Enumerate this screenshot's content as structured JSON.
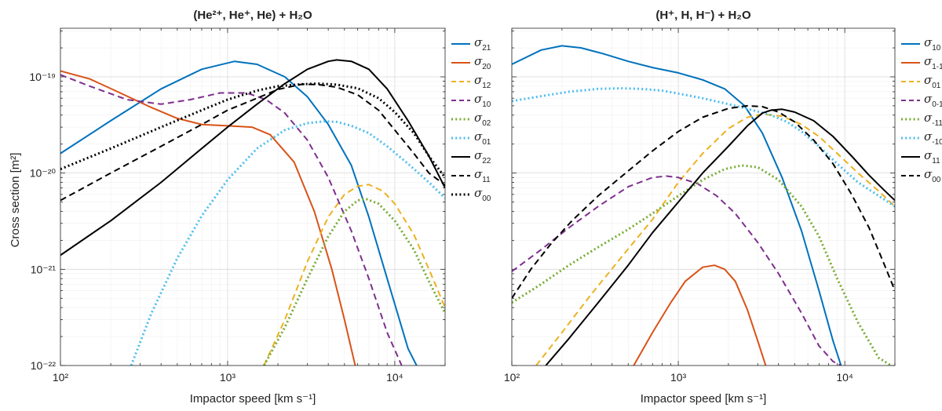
{
  "figure": {
    "left_title": "(He²⁺, He⁺, He) + H₂O",
    "right_title": "(H⁺, H, H⁻) + H₂O",
    "ylabel": "Cross section [m²]",
    "xlabel": "Impactor speed [km s⁻¹]"
  },
  "chart_data": [
    {
      "type": "line",
      "title": "(He²⁺, He⁺, He) + H₂O",
      "xlabel": "Impactor speed [km s⁻¹]",
      "ylabel": "Cross section [m²]",
      "xscale": "log",
      "yscale": "log",
      "xlim": [
        100,
        20000
      ],
      "ylim": [
        1e-22,
        3.2e-19
      ],
      "xticks": [
        100,
        1000,
        10000
      ],
      "xtick_labels": [
        "10²",
        "10³",
        "10⁴"
      ],
      "yticks": [
        1e-22,
        1e-21,
        1e-20,
        1e-19
      ],
      "ytick_labels": [
        "10⁻²²",
        "10⁻²¹",
        "10⁻²⁰",
        "10⁻¹⁹"
      ],
      "grid": true,
      "legend_position": "outside-right",
      "series": [
        {
          "name": "σ21",
          "sub": "21",
          "color": "#0072BD",
          "style": "solid",
          "x": [
            100,
            200,
            400,
            700,
            1100,
            1500,
            2200,
            3000,
            4000,
            5500,
            7000,
            9000,
            12000,
            13500
          ],
          "y": [
            1.6e-20,
            3.5e-20,
            7.5e-20,
            1.2e-19,
            1.45e-19,
            1.35e-19,
            1e-19,
            6.2e-20,
            3.2e-20,
            1.2e-20,
            3.5e-21,
            8e-22,
            1.5e-22,
            1e-22
          ]
        },
        {
          "name": "σ20",
          "sub": "20",
          "color": "#D95319",
          "style": "solid",
          "x": [
            100,
            150,
            220,
            350,
            500,
            700,
            1000,
            1400,
            1800,
            2500,
            3300,
            4200,
            5000,
            5800
          ],
          "y": [
            1.15e-19,
            9.5e-20,
            7e-20,
            4.8e-20,
            3.7e-20,
            3.2e-20,
            3.1e-20,
            3e-20,
            2.5e-20,
            1.3e-20,
            4e-21,
            1e-21,
            3e-22,
            1e-22
          ]
        },
        {
          "name": "σ12",
          "sub": "12",
          "color": "#EDB120",
          "style": "dashed",
          "x": [
            1650,
            2200,
            3000,
            4000,
            5000,
            6000,
            7000,
            8500,
            10000,
            13000,
            16000,
            20000
          ],
          "y": [
            1e-22,
            3e-22,
            1.2e-21,
            3.5e-21,
            6e-21,
            7.3e-21,
            7.6e-21,
            6.5e-21,
            4.8e-21,
            2.3e-21,
            1e-21,
            4e-22
          ]
        },
        {
          "name": "σ10",
          "sub": "10",
          "color": "#7E2F8E",
          "style": "dashed",
          "x": [
            100,
            150,
            250,
            400,
            600,
            900,
            1300,
            1700,
            2200,
            3000,
            4000,
            5500,
            7000,
            9000,
            11000
          ],
          "y": [
            1.05e-19,
            8e-20,
            5.8e-20,
            5.2e-20,
            5.8e-20,
            6.8e-20,
            6.8e-20,
            5.8e-20,
            4.2e-20,
            2.2e-20,
            9e-21,
            2.5e-21,
            8e-22,
            2.2e-22,
            1e-22
          ]
        },
        {
          "name": "σ02",
          "sub": "02",
          "color": "#77AC30",
          "style": "dotted",
          "x": [
            1650,
            2200,
            3000,
            4000,
            5000,
            6000,
            6700,
            8000,
            10000,
            13000,
            16000,
            20000
          ],
          "y": [
            1e-22,
            2.5e-22,
            8e-22,
            2.2e-21,
            4e-21,
            5.2e-21,
            5.4e-21,
            4.8e-21,
            3.2e-21,
            1.6e-21,
            7.5e-22,
            3.5e-22
          ]
        },
        {
          "name": "σ01",
          "sub": "01",
          "color": "#4DBEEE",
          "style": "dotted",
          "x": [
            265,
            350,
            500,
            700,
            1000,
            1500,
            2200,
            3000,
            3800,
            4500,
            5500,
            7000,
            9000,
            12000,
            16000,
            20000
          ],
          "y": [
            1e-22,
            3.5e-22,
            1.3e-21,
            3.6e-21,
            8.5e-21,
            1.8e-20,
            2.8e-20,
            3.3e-20,
            3.45e-20,
            3.4e-20,
            3.1e-20,
            2.6e-20,
            1.9e-20,
            1.25e-20,
            8e-21,
            5.5e-21
          ]
        },
        {
          "name": "σ22",
          "sub": "22",
          "color": "#000000",
          "style": "solid",
          "x": [
            100,
            200,
            400,
            700,
            1000,
            1500,
            2200,
            3000,
            4000,
            4500,
            5500,
            7000,
            9000,
            12000,
            16000,
            20000
          ],
          "y": [
            1.4e-21,
            3.2e-21,
            8e-21,
            1.8e-20,
            3e-20,
            5.2e-20,
            8.5e-20,
            1.2e-19,
            1.45e-19,
            1.5e-19,
            1.45e-19,
            1.2e-19,
            7.5e-20,
            3.5e-20,
            1.5e-20,
            7e-21
          ]
        },
        {
          "name": "σ11",
          "sub": "11",
          "color": "#000000",
          "style": "dashed",
          "x": [
            100,
            200,
            400,
            700,
            1000,
            1500,
            2000,
            2800,
            3500,
            4500,
            6000,
            8000,
            10000,
            13000,
            16000,
            20000
          ],
          "y": [
            5.2e-21,
            1e-20,
            1.9e-20,
            3.2e-20,
            4.5e-20,
            6e-20,
            7.4e-20,
            8.4e-20,
            8.3e-20,
            7.8e-20,
            6.5e-20,
            4.5e-20,
            2.8e-20,
            1.6e-20,
            1e-20,
            7.5e-21
          ]
        },
        {
          "name": "σ00",
          "sub": "00",
          "color": "#000000",
          "style": "dotted",
          "x": [
            100,
            200,
            400,
            700,
            1000,
            1500,
            2000,
            2800,
            3500,
            4500,
            6000,
            8000,
            10000,
            13000,
            16000,
            20000
          ],
          "y": [
            1.1e-20,
            1.8e-20,
            3e-20,
            4.5e-20,
            5.8e-20,
            7.2e-20,
            8e-20,
            8.4e-20,
            8.5e-20,
            8.3e-20,
            7.6e-20,
            6e-20,
            4.3e-20,
            2.6e-20,
            1.5e-20,
            9e-21
          ]
        }
      ]
    },
    {
      "type": "line",
      "title": "(H⁺, H, H⁻) + H₂O",
      "xlabel": "Impactor speed [km s⁻¹]",
      "ylabel": "",
      "xscale": "log",
      "yscale": "log",
      "xlim": [
        100,
        20000
      ],
      "ylim": [
        1e-22,
        3.2e-19
      ],
      "xticks": [
        100,
        1000,
        10000
      ],
      "xtick_labels": [
        "10²",
        "10³",
        "10⁴"
      ],
      "yticks": [
        1e-22,
        1e-21,
        1e-20,
        1e-19
      ],
      "grid": true,
      "legend_position": "outside-right",
      "series": [
        {
          "name": "σ10",
          "sub": "10",
          "color": "#0072BD",
          "style": "solid",
          "x": [
            100,
            150,
            200,
            260,
            350,
            500,
            700,
            1000,
            1400,
            1900,
            2500,
            3200,
            4200,
            5500,
            7000,
            8500,
            9500
          ],
          "y": [
            1.35e-19,
            1.9e-19,
            2.1e-19,
            2e-19,
            1.75e-19,
            1.45e-19,
            1.25e-19,
            1.1e-19,
            9.3e-20,
            7.5e-20,
            5e-20,
            2.6e-20,
            9e-21,
            2.5e-21,
            6e-22,
            1.8e-22,
            1e-22
          ]
        },
        {
          "name": "σ1-1",
          "sub": "1-1",
          "color": "#D95319",
          "style": "solid",
          "x": [
            540,
            700,
            900,
            1100,
            1400,
            1650,
            1900,
            2200,
            2600,
            3000,
            3350
          ],
          "y": [
            1e-22,
            2.2e-22,
            4.5e-22,
            7.5e-22,
            1.05e-21,
            1.1e-21,
            1e-21,
            7.5e-22,
            3.8e-22,
            1.8e-22,
            1e-22
          ]
        },
        {
          "name": "σ01",
          "sub": "01",
          "color": "#EDB120",
          "style": "dashed",
          "x": [
            140,
            200,
            300,
            450,
            700,
            1000,
            1400,
            2000,
            2600,
            3200,
            4200,
            5500,
            7000,
            9000,
            12000,
            16000,
            20000
          ],
          "y": [
            1e-22,
            2.2e-22,
            5.5e-22,
            1.3e-21,
            3.3e-21,
            8e-21,
            1.6e-20,
            2.9e-20,
            3.8e-20,
            4.1e-20,
            3.9e-20,
            3.2e-20,
            2.4e-20,
            1.6e-20,
            1e-20,
            6.5e-21,
            4.5e-21
          ]
        },
        {
          "name": "σ0-1",
          "sub": "0-1",
          "color": "#7E2F8E",
          "style": "dashed",
          "x": [
            100,
            150,
            220,
            330,
            500,
            700,
            850,
            1000,
            1300,
            1700,
            2200,
            3000,
            4000,
            5500,
            7000,
            8500,
            9500
          ],
          "y": [
            9.5e-22,
            1.6e-21,
            2.7e-21,
            4.5e-21,
            7.2e-21,
            9e-21,
            9.3e-21,
            9e-21,
            7.8e-21,
            5.8e-21,
            3.8e-21,
            1.9e-21,
            9e-22,
            3.5e-22,
            1.6e-22,
            1.1e-22,
            1e-22
          ]
        },
        {
          "name": "σ-11",
          "sub": "-11",
          "color": "#77AC30",
          "style": "dotted",
          "x": [
            100,
            150,
            220,
            330,
            500,
            700,
            1000,
            1400,
            1900,
            2400,
            3000,
            4000,
            5500,
            7000,
            9000,
            12000,
            16000,
            19000
          ],
          "y": [
            4.5e-22,
            7e-22,
            1.1e-21,
            1.7e-21,
            2.6e-21,
            3.8e-21,
            5.8e-21,
            8.5e-21,
            1.1e-20,
            1.2e-20,
            1.15e-20,
            8.5e-21,
            4.5e-21,
            2.2e-21,
            8e-22,
            2.8e-22,
            1.2e-22,
            1e-22
          ]
        },
        {
          "name": "σ-10",
          "sub": "-10",
          "color": "#4DBEEE",
          "style": "dotted",
          "x": [
            100,
            150,
            220,
            330,
            450,
            600,
            800,
            1000,
            1400,
            2000,
            2800,
            3600,
            4500,
            5500,
            7000,
            9000,
            12000,
            16000,
            20000
          ],
          "y": [
            5.6e-20,
            6.3e-20,
            7e-20,
            7.5e-20,
            7.6e-20,
            7.5e-20,
            7.2e-20,
            6.7e-20,
            6e-20,
            5.2e-20,
            4.5e-20,
            4e-20,
            3.4e-20,
            2.7e-20,
            1.9e-20,
            1.25e-20,
            8e-21,
            5.8e-21,
            4.5e-21
          ]
        },
        {
          "name": "σ11",
          "sub": "11",
          "color": "#000000",
          "style": "solid",
          "x": [
            160,
            220,
            330,
            500,
            700,
            1000,
            1400,
            2000,
            2600,
            3200,
            3600,
            4200,
            5000,
            6500,
            8500,
            11000,
            14000,
            17000,
            20000
          ],
          "y": [
            1e-22,
            1.9e-22,
            4.5e-22,
            1.1e-21,
            2.4e-21,
            5e-21,
            1e-20,
            1.9e-20,
            3.1e-20,
            4.2e-20,
            4.5e-20,
            4.6e-20,
            4.3e-20,
            3.5e-20,
            2.4e-20,
            1.5e-20,
            9.5e-21,
            6.8e-21,
            5.2e-21
          ]
        },
        {
          "name": "σ00",
          "sub": "00",
          "color": "#000000",
          "style": "dashed",
          "x": [
            100,
            130,
            170,
            230,
            330,
            500,
            700,
            1000,
            1400,
            2000,
            2600,
            3200,
            4000,
            5000,
            6500,
            8500,
            11000,
            14000,
            17000,
            20000
          ],
          "y": [
            5e-22,
            1e-21,
            1.8e-21,
            3.2e-21,
            5.8e-21,
            1.05e-20,
            1.7e-20,
            2.7e-20,
            3.8e-20,
            4.7e-20,
            5e-20,
            4.9e-20,
            4.3e-20,
            3.4e-20,
            2.2e-20,
            1.25e-20,
            6e-21,
            2.7e-21,
            1.2e-21,
            6e-22
          ]
        }
      ]
    }
  ]
}
